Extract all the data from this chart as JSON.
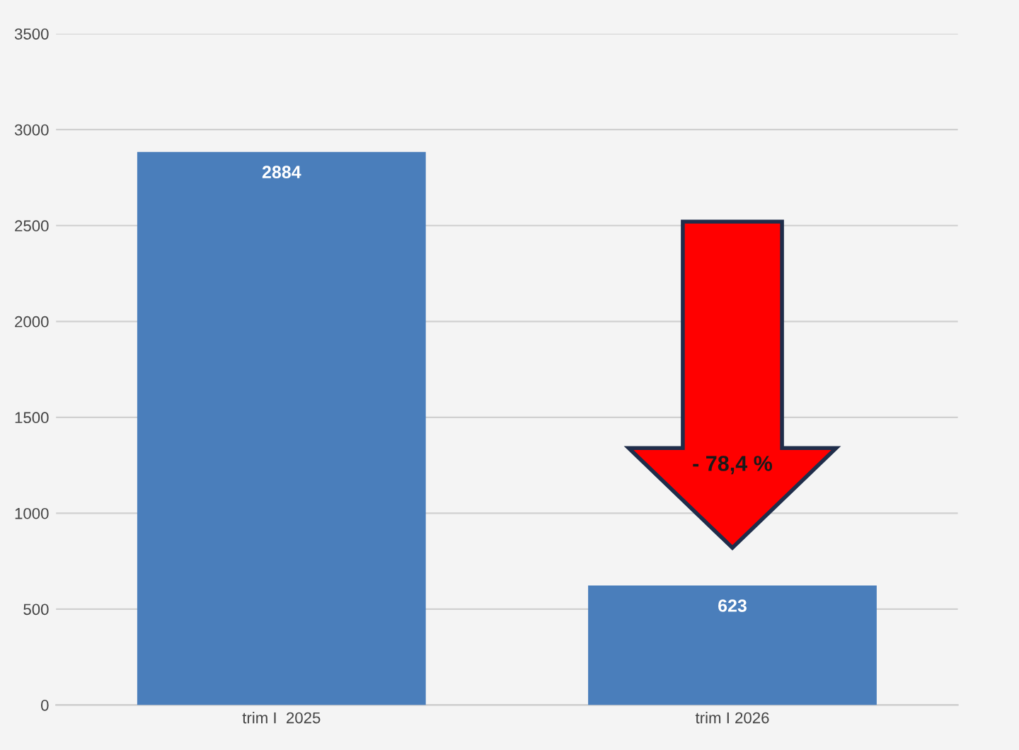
{
  "chart_data": {
    "type": "bar",
    "categories": [
      "trim I  2025",
      "trim I 2026"
    ],
    "values": [
      2884,
      623
    ],
    "color": "#4a7ebb",
    "data_labels": true,
    "ylim": [
      0,
      3500
    ],
    "yticks": [
      0,
      500,
      1000,
      1500,
      2000,
      2500,
      3000,
      3500
    ],
    "grid": "y",
    "annotations": [
      "- 78,4 %"
    ]
  }
}
